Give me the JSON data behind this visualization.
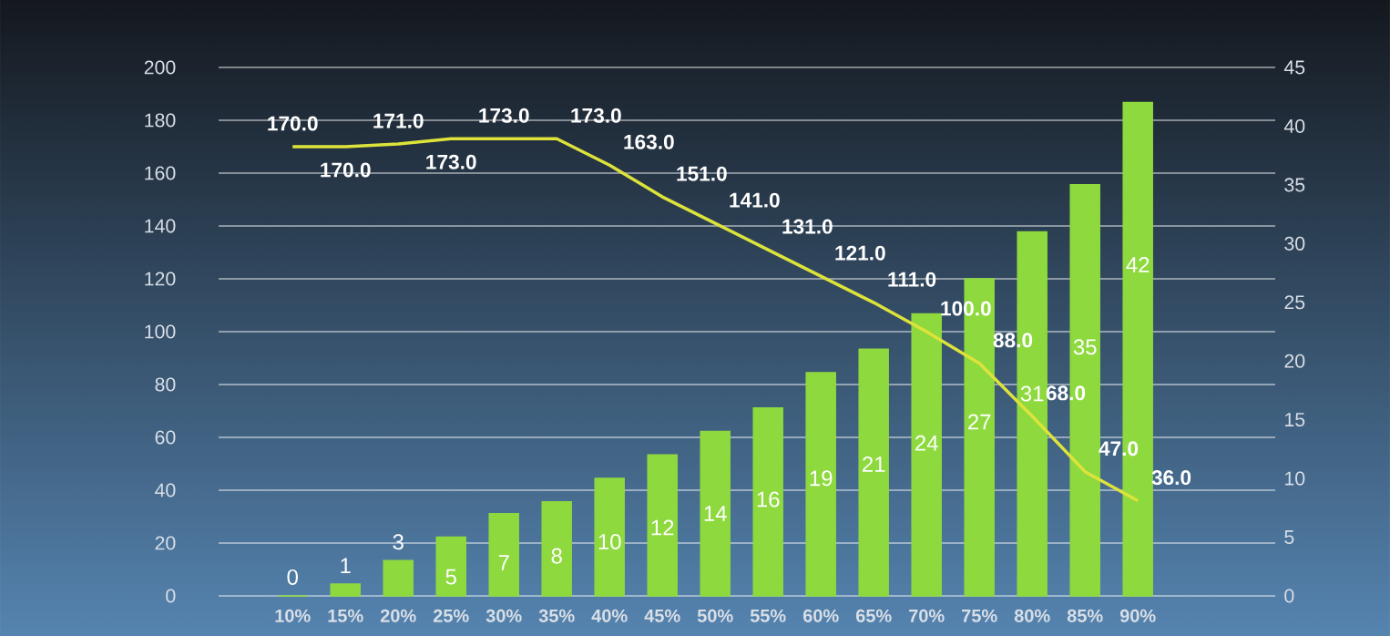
{
  "chart_data": {
    "type": "bar",
    "categories": [
      "10%",
      "15%",
      "20%",
      "25%",
      "30%",
      "35%",
      "40%",
      "45%",
      "50%",
      "55%",
      "60%",
      "65%",
      "70%",
      "75%",
      "80%",
      "85%",
      "90%"
    ],
    "series": [
      {
        "axis": "y2",
        "color": "#8ed93e",
        "values": [
          0,
          1,
          3,
          5,
          7,
          8,
          10,
          12,
          14,
          16,
          19,
          21,
          24,
          27,
          31,
          35,
          42
        ],
        "value_labels": [
          "0",
          "1",
          "3",
          "5",
          "7",
          "8",
          "10",
          "12",
          "14",
          "16",
          "19",
          "21",
          "24",
          "27",
          "31",
          "35",
          "42"
        ]
      },
      {
        "type": "line",
        "color": "#dde33a",
        "values": [
          170,
          170,
          171,
          173,
          173,
          173,
          163,
          151,
          141,
          131,
          121,
          111,
          100,
          88,
          68,
          47,
          36
        ],
        "value_labels": [
          "170.0",
          "170.0",
          "171.0",
          "173.0",
          "173.0",
          "173.0",
          "163.0",
          "151.0",
          "141.0",
          "131.0",
          "121.0",
          "111.0",
          "100.0",
          "88.0",
          "68.0",
          "47.0",
          "36.0"
        ]
      }
    ],
    "ylim": [
      0,
      200
    ],
    "yticks": [
      0,
      20,
      40,
      60,
      80,
      100,
      120,
      140,
      160,
      180,
      200
    ],
    "y2lim": [
      0,
      45
    ],
    "y2ticks": [
      0,
      5,
      10,
      15,
      20,
      25,
      30,
      35,
      40,
      45
    ],
    "grid": "y",
    "marker": "none",
    "line_style": "solid"
  }
}
